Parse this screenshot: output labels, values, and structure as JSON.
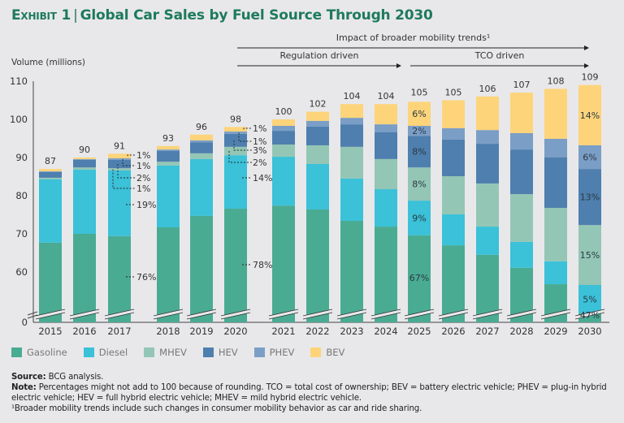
{
  "header": {
    "exhibit_label": "Exhibit 1",
    "title": "Global Car Sales by Fuel Source Through 2030"
  },
  "chart_data": {
    "type": "bar",
    "stacked": true,
    "title": "Global Car Sales by Fuel Source Through 2030",
    "ylabel": "Volume (millions)",
    "xlabel": "",
    "ylim": [
      0,
      110
    ],
    "axis_break": {
      "from": 0,
      "to": 55
    },
    "yticks": [
      0,
      60,
      70,
      80,
      90,
      100,
      110
    ],
    "grid": false,
    "legend_position": "bottom-left",
    "categories": [
      "2015",
      "2016",
      "2017",
      "2018",
      "2019",
      "2020",
      "2021",
      "2022",
      "2023",
      "2024",
      "2025",
      "2026",
      "2027",
      "2028",
      "2029",
      "2030"
    ],
    "totals": [
      87,
      90,
      91,
      93,
      96,
      98,
      100,
      102,
      104,
      104,
      105,
      105,
      106,
      107,
      108,
      109
    ],
    "series": [
      {
        "name": "Gasoline",
        "color": "#4aab93",
        "values": [
          67.7,
          70.0,
          69.4,
          71.7,
          74.7,
          76.6,
          77.4,
          76.4,
          73.4,
          71.9,
          69.6,
          67.0,
          64.5,
          61.1,
          56.8,
          51.0
        ]
      },
      {
        "name": "Diesel",
        "color": "#3bc1d8",
        "values": [
          16.6,
          16.8,
          17.2,
          16.2,
          14.9,
          14.0,
          12.8,
          11.9,
          11.1,
          9.8,
          9.1,
          8.1,
          7.4,
          6.8,
          6.0,
          5.6
        ]
      },
      {
        "name": "MHEV",
        "color": "#94c6b5",
        "values": [
          0.4,
          0.6,
          0.6,
          1.0,
          1.5,
          2.2,
          3.2,
          4.9,
          8.3,
          7.9,
          8.7,
          10.0,
          11.3,
          12.5,
          14.0,
          15.7
        ]
      },
      {
        "name": "HEV",
        "color": "#4e7fae",
        "values": [
          1.5,
          2.0,
          2.2,
          2.8,
          2.9,
          3.4,
          3.6,
          4.9,
          5.9,
          7.0,
          8.3,
          9.6,
          10.4,
          11.7,
          13.2,
          14.7
        ]
      },
      {
        "name": "PHEV",
        "color": "#7b9ec6",
        "values": [
          0.2,
          0.2,
          0.4,
          0.4,
          0.5,
          0.6,
          1.3,
          1.5,
          1.7,
          2.1,
          2.6,
          3.0,
          3.6,
          4.3,
          4.9,
          6.2
        ]
      },
      {
        "name": "BEV",
        "color": "#fdd47a",
        "values": [
          0.6,
          0.4,
          1.2,
          0.9,
          1.5,
          1.2,
          1.7,
          2.4,
          3.6,
          5.3,
          6.3,
          7.3,
          8.8,
          10.6,
          13.1,
          15.8
        ]
      }
    ],
    "annotations": {
      "2017": [
        {
          "series": "BEV",
          "label": "1%"
        },
        {
          "series": "PHEV",
          "label": "1%"
        },
        {
          "series": "HEV",
          "label": "2%"
        },
        {
          "series": "MHEV",
          "label": "1%"
        },
        {
          "series": "Diesel",
          "label": "19%"
        },
        {
          "series": "Gasoline",
          "label": "76%"
        }
      ],
      "2020": [
        {
          "series": "BEV",
          "label": "1%"
        },
        {
          "series": "PHEV",
          "label": "1%"
        },
        {
          "series": "HEV",
          "label": "3%"
        },
        {
          "series": "MHEV",
          "label": "2%"
        },
        {
          "series": "Diesel",
          "label": "14%"
        },
        {
          "series": "Gasoline",
          "label": "78%"
        }
      ],
      "2025": [
        {
          "series": "BEV",
          "label": "6%"
        },
        {
          "series": "PHEV",
          "label": "2%"
        },
        {
          "series": "HEV",
          "label": "8%"
        },
        {
          "series": "MHEV",
          "label": "8%"
        },
        {
          "series": "Diesel",
          "label": "9%"
        },
        {
          "series": "Gasoline",
          "label": "67%"
        }
      ],
      "2030": [
        {
          "series": "BEV",
          "label": "14%"
        },
        {
          "series": "PHEV",
          "label": "6%"
        },
        {
          "series": "HEV",
          "label": "13%"
        },
        {
          "series": "MHEV",
          "label": "15%"
        },
        {
          "series": "Diesel",
          "label": "5%"
        },
        {
          "series": "Gasoline",
          "label": "47%"
        }
      ]
    },
    "period_arrows": [
      {
        "label": "Impact of broader mobility trends¹",
        "from": "2020",
        "to": "2030"
      },
      {
        "label": "Regulation driven",
        "from": "2019",
        "to": "2024"
      },
      {
        "label": "TCO driven",
        "from": "2025",
        "to": "2030"
      }
    ]
  },
  "legend": [
    {
      "label": "Gasoline",
      "color": "#4aab93"
    },
    {
      "label": "Diesel",
      "color": "#3bc1d8"
    },
    {
      "label": "MHEV",
      "color": "#94c6b5"
    },
    {
      "label": "HEV",
      "color": "#4e7fae"
    },
    {
      "label": "PHEV",
      "color": "#7b9ec6"
    },
    {
      "label": "BEV",
      "color": "#fdd47a"
    }
  ],
  "notes": {
    "source_label": "Source:",
    "source_text": " BCG analysis.",
    "note_label": "Note:",
    "note_text_line1": " Percentages might not add to 100 because of rounding. TCO = total cost of ownership; BEV = battery electric vehicle; PHEV = plug-in hybrid",
    "note_text_line2": "electric vehicle; HEV = full hybrid electric vehicle; MHEV = mild hybrid electric vehicle.",
    "footnote": "¹Broader mobility trends include such changes in consumer mobility behavior as car and ride sharing."
  }
}
